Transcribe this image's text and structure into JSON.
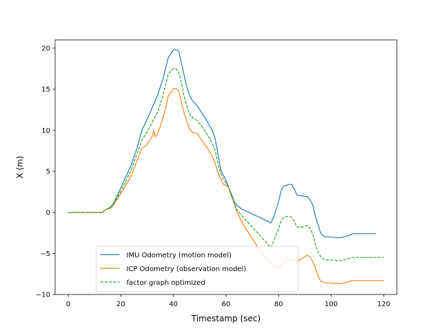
{
  "chart_data": {
    "type": "line",
    "title": "",
    "xlabel": "Timestamp (sec)",
    "ylabel": "X (m)",
    "xlim": [
      -5,
      125
    ],
    "ylim": [
      -10,
      21
    ],
    "xticks": [
      0,
      20,
      40,
      60,
      80,
      100,
      120
    ],
    "yticks": [
      -10,
      -5,
      0,
      5,
      10,
      15,
      20
    ],
    "grid": false,
    "legend_position": "lower center",
    "series": [
      {
        "name": "IMU Odometry (motion model)",
        "color": "#1f77b4",
        "style": "solid",
        "points": [
          [
            0,
            0
          ],
          [
            13,
            0
          ],
          [
            14,
            0.3
          ],
          [
            16,
            0.6
          ],
          [
            17,
            1.0
          ],
          [
            19,
            2.3
          ],
          [
            21,
            3.7
          ],
          [
            24,
            5.8
          ],
          [
            26,
            7.7
          ],
          [
            28,
            10.0
          ],
          [
            30,
            11.3
          ],
          [
            32,
            12.8
          ],
          [
            34,
            14.3
          ],
          [
            36,
            16.2
          ],
          [
            38,
            18.8
          ],
          [
            39,
            19.3
          ],
          [
            40,
            19.8
          ],
          [
            41,
            19.8
          ],
          [
            42,
            19.7
          ],
          [
            43,
            18.2
          ],
          [
            44,
            16.8
          ],
          [
            45,
            15.4
          ],
          [
            46,
            14.4
          ],
          [
            47,
            13.7
          ],
          [
            49,
            13.0
          ],
          [
            51,
            12.0
          ],
          [
            53,
            11.0
          ],
          [
            55,
            9.8
          ],
          [
            56,
            8.8
          ],
          [
            57,
            7.0
          ],
          [
            58,
            5.2
          ],
          [
            59,
            4.5
          ],
          [
            60,
            3.9
          ],
          [
            61,
            3.0
          ],
          [
            62,
            2.3
          ],
          [
            63,
            1.4
          ],
          [
            64,
            0.9
          ],
          [
            66,
            0.4
          ],
          [
            68,
            0.1
          ],
          [
            70,
            -0.2
          ],
          [
            72,
            -0.5
          ],
          [
            74,
            -0.8
          ],
          [
            76,
            -1.1
          ],
          [
            77,
            -1.3
          ],
          [
            78,
            -0.7
          ],
          [
            80,
            1.3
          ],
          [
            81,
            2.7
          ],
          [
            82,
            3.2
          ],
          [
            83,
            3.3
          ],
          [
            84,
            3.4
          ],
          [
            85,
            3.4
          ],
          [
            86,
            2.8
          ],
          [
            87,
            2.1
          ],
          [
            89,
            2.0
          ],
          [
            91,
            1.9
          ],
          [
            92,
            1.5
          ],
          [
            93,
            0.9
          ],
          [
            94,
            -0.5
          ],
          [
            95,
            -1.5
          ],
          [
            96,
            -2.5
          ],
          [
            97,
            -2.9
          ],
          [
            98,
            -3.0
          ],
          [
            100,
            -3.0
          ],
          [
            103,
            -3.1
          ],
          [
            106,
            -2.9
          ],
          [
            107,
            -2.8
          ],
          [
            108,
            -2.6
          ],
          [
            110,
            -2.6
          ],
          [
            114,
            -2.6
          ],
          [
            117,
            -2.6
          ]
        ]
      },
      {
        "name": "ICP Odometry (observation model)",
        "color": "#ff7f0e",
        "style": "solid",
        "points": [
          [
            0,
            0
          ],
          [
            13,
            0
          ],
          [
            14,
            0.3
          ],
          [
            16,
            0.5
          ],
          [
            17,
            0.8
          ],
          [
            19,
            1.8
          ],
          [
            21,
            2.8
          ],
          [
            24,
            4.5
          ],
          [
            26,
            6.2
          ],
          [
            28,
            7.8
          ],
          [
            29,
            8.0
          ],
          [
            30,
            8.3
          ],
          [
            31,
            8.8
          ],
          [
            32,
            9.3
          ],
          [
            32.5,
            10.0
          ],
          [
            33,
            9.2
          ],
          [
            34,
            9.6
          ],
          [
            35,
            10.5
          ],
          [
            36,
            11.5
          ],
          [
            37,
            12.6
          ],
          [
            38,
            14.2
          ],
          [
            39,
            14.6
          ],
          [
            40,
            15.1
          ],
          [
            41,
            15.1
          ],
          [
            42,
            14.8
          ],
          [
            43,
            13.5
          ],
          [
            44,
            12.2
          ],
          [
            45,
            11.2
          ],
          [
            46,
            10.2
          ],
          [
            47,
            9.8
          ],
          [
            49,
            9.6
          ],
          [
            51,
            8.7
          ],
          [
            53,
            7.8
          ],
          [
            54,
            7.3
          ],
          [
            55,
            6.6
          ],
          [
            56,
            5.8
          ],
          [
            57,
            4.8
          ],
          [
            58,
            4.1
          ],
          [
            59,
            3.4
          ],
          [
            60,
            3.3
          ],
          [
            61,
            3.0
          ],
          [
            62,
            2.0
          ],
          [
            63,
            1.2
          ],
          [
            64,
            0.2
          ],
          [
            65,
            -0.5
          ],
          [
            66,
            -1.2
          ],
          [
            68,
            -2.2
          ],
          [
            70,
            -3.2
          ],
          [
            72,
            -4.2
          ],
          [
            74,
            -5.1
          ],
          [
            76,
            -5.9
          ],
          [
            78,
            -6.5
          ],
          [
            80,
            -6.8
          ],
          [
            82,
            -6.0
          ],
          [
            83,
            -5.6
          ],
          [
            84,
            -5.7
          ],
          [
            86,
            -5.9
          ],
          [
            88,
            -5.8
          ],
          [
            90,
            -5.4
          ],
          [
            91,
            -5.2
          ],
          [
            92,
            -5.5
          ],
          [
            93,
            -6.0
          ],
          [
            94,
            -6.8
          ],
          [
            95,
            -7.7
          ],
          [
            96,
            -8.4
          ],
          [
            97,
            -8.5
          ],
          [
            98,
            -8.6
          ],
          [
            100,
            -8.6
          ],
          [
            103,
            -8.7
          ],
          [
            106,
            -8.5
          ],
          [
            108,
            -8.3
          ],
          [
            112,
            -8.3
          ],
          [
            116,
            -8.3
          ],
          [
            120,
            -8.3
          ]
        ]
      },
      {
        "name": "factor graph optimized",
        "color": "#2ca02c",
        "style": "dashed",
        "points": [
          [
            0,
            0
          ],
          [
            13,
            0
          ],
          [
            14,
            0.3
          ],
          [
            16,
            0.6
          ],
          [
            17,
            0.9
          ],
          [
            19,
            2.0
          ],
          [
            21,
            3.2
          ],
          [
            24,
            5.2
          ],
          [
            26,
            7.0
          ],
          [
            28,
            8.8
          ],
          [
            30,
            9.8
          ],
          [
            32,
            11.0
          ],
          [
            34,
            12.2
          ],
          [
            36,
            14.2
          ],
          [
            38,
            16.8
          ],
          [
            39,
            17.2
          ],
          [
            40,
            17.5
          ],
          [
            41,
            17.5
          ],
          [
            42,
            17.1
          ],
          [
            43,
            15.8
          ],
          [
            44,
            14.2
          ],
          [
            45,
            13.0
          ],
          [
            46,
            12.0
          ],
          [
            47,
            11.6
          ],
          [
            49,
            11.2
          ],
          [
            51,
            10.4
          ],
          [
            53,
            9.4
          ],
          [
            54,
            8.9
          ],
          [
            55,
            8.2
          ],
          [
            56,
            7.4
          ],
          [
            57,
            5.8
          ],
          [
            58,
            4.7
          ],
          [
            59,
            4.0
          ],
          [
            60,
            3.6
          ],
          [
            61,
            3.0
          ],
          [
            62,
            2.2
          ],
          [
            63,
            1.3
          ],
          [
            64,
            0.4
          ],
          [
            66,
            -0.4
          ],
          [
            68,
            -1.1
          ],
          [
            70,
            -1.8
          ],
          [
            72,
            -2.5
          ],
          [
            74,
            -3.2
          ],
          [
            76,
            -3.9
          ],
          [
            77,
            -4.3
          ],
          [
            78,
            -3.6
          ],
          [
            80,
            -2.0
          ],
          [
            81,
            -1.0
          ],
          [
            82,
            -0.6
          ],
          [
            83,
            -0.5
          ],
          [
            84,
            -0.5
          ],
          [
            85,
            -0.6
          ],
          [
            86,
            -1.1
          ],
          [
            87,
            -1.8
          ],
          [
            89,
            -1.8
          ],
          [
            91,
            -1.6
          ],
          [
            92,
            -2.0
          ],
          [
            93,
            -2.6
          ],
          [
            94,
            -3.9
          ],
          [
            95,
            -4.8
          ],
          [
            96,
            -5.4
          ],
          [
            97,
            -5.7
          ],
          [
            98,
            -5.8
          ],
          [
            100,
            -5.8
          ],
          [
            103,
            -5.9
          ],
          [
            106,
            -5.7
          ],
          [
            108,
            -5.5
          ],
          [
            112,
            -5.5
          ],
          [
            116,
            -5.5
          ],
          [
            120,
            -5.5
          ]
        ]
      }
    ]
  }
}
